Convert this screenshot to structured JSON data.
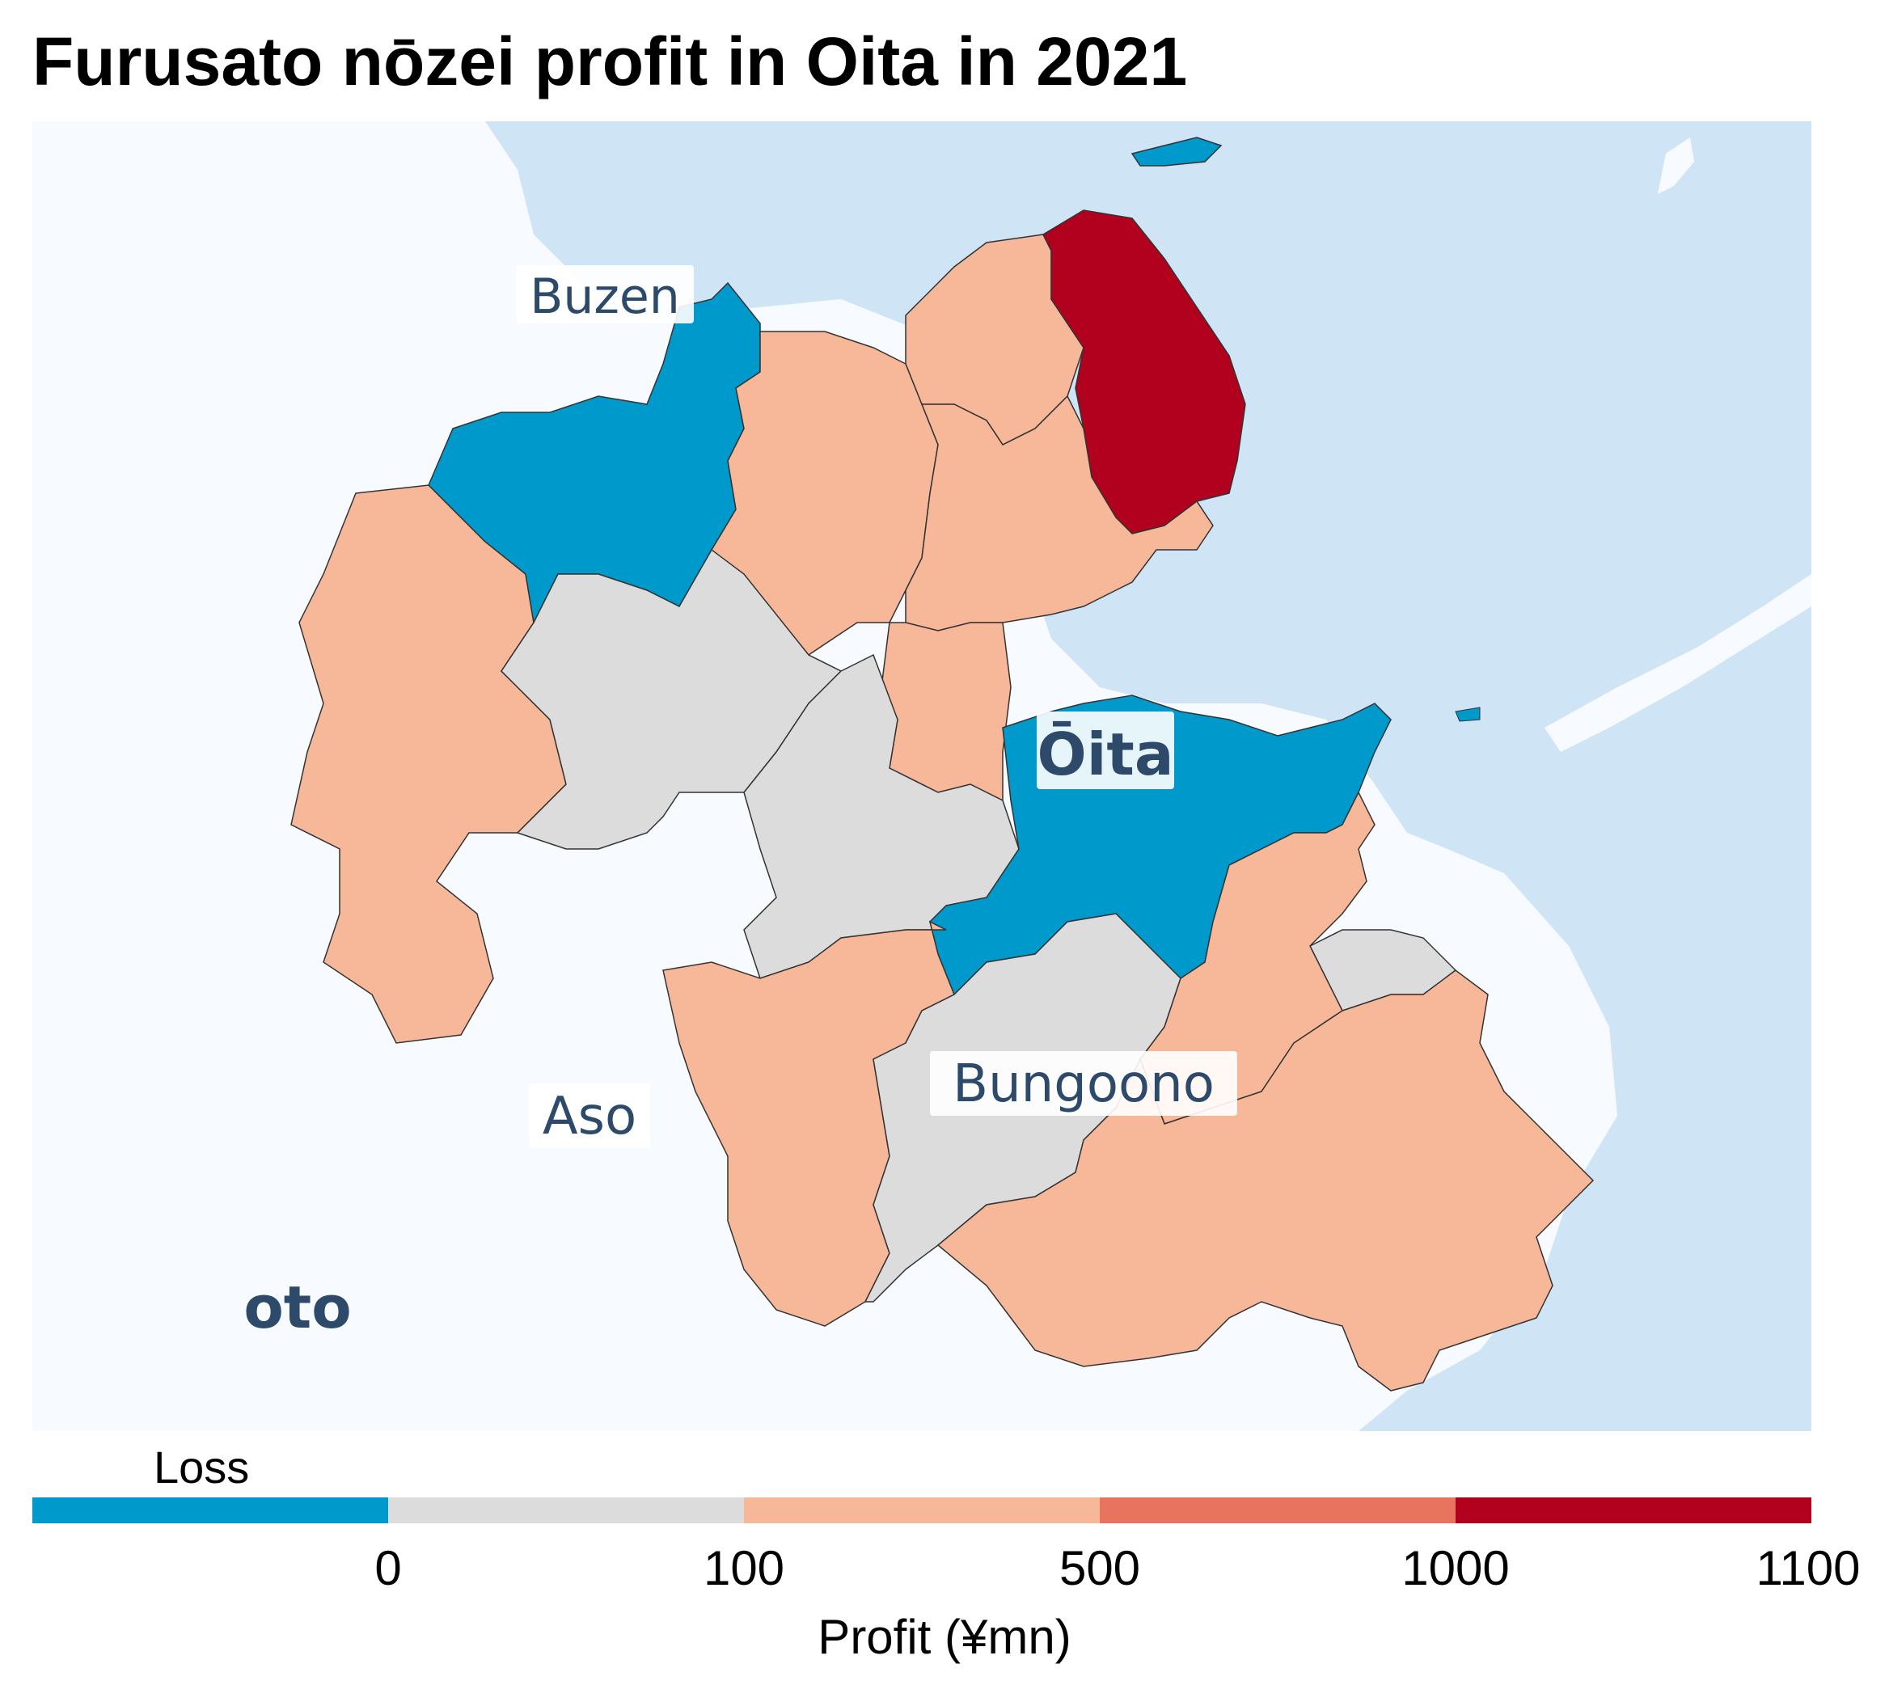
{
  "title": "Furusato nōzei profit in Oita in 2021",
  "colors": {
    "sea": "#cfe4f4",
    "land": "#f7fbff",
    "loss": "#0099cc",
    "bin_0_100": "#dcdcdc",
    "bin_100_500": "#f7b799",
    "bin_500_1000": "#e8735f",
    "bin_1000_1100": "#b2001f",
    "border": "#333333",
    "label_text": "#2d4a6b"
  },
  "place_labels": {
    "buzen": "Buzen",
    "oita": "Ōita",
    "aso": "Aso",
    "bungoono": "Bungoono",
    "oto": "oto"
  },
  "legend": {
    "loss_label": "Loss",
    "ticks": [
      "0",
      "100",
      "500",
      "1000",
      "1100"
    ],
    "axis_label": "Profit (¥mn)",
    "bins": [
      {
        "range": "<0",
        "color": "#0099cc"
      },
      {
        "range": "0–100",
        "color": "#dcdcdc"
      },
      {
        "range": "100–500",
        "color": "#f7b799"
      },
      {
        "range": "500–1000",
        "color": "#e8735f"
      },
      {
        "range": "1000–1100",
        "color": "#b2001f"
      }
    ]
  },
  "regions": [
    {
      "id": "kunisaki",
      "bin": "1000–1100"
    },
    {
      "id": "oita-city",
      "bin": "<0"
    },
    {
      "id": "nakatsu-area",
      "bin": "<0"
    },
    {
      "id": "himeshima",
      "bin": "<0"
    },
    {
      "id": "usa",
      "bin": "100–500"
    },
    {
      "id": "bungotakada",
      "bin": "100–500"
    },
    {
      "id": "kitsuki",
      "bin": "100–500"
    },
    {
      "id": "hiji",
      "bin": "100–500"
    },
    {
      "id": "beppu",
      "bin": "100–500"
    },
    {
      "id": "hita",
      "bin": "100–500"
    },
    {
      "id": "taketa",
      "bin": "100–500"
    },
    {
      "id": "usuki-tsukumi",
      "bin": "100–500"
    },
    {
      "id": "saiki",
      "bin": "100–500"
    },
    {
      "id": "kusu-kokonoe",
      "bin": "0–100"
    },
    {
      "id": "yufu",
      "bin": "0–100"
    },
    {
      "id": "bungo-ono",
      "bin": "0–100"
    },
    {
      "id": "usuki-peninsula",
      "bin": "0–100"
    }
  ]
}
